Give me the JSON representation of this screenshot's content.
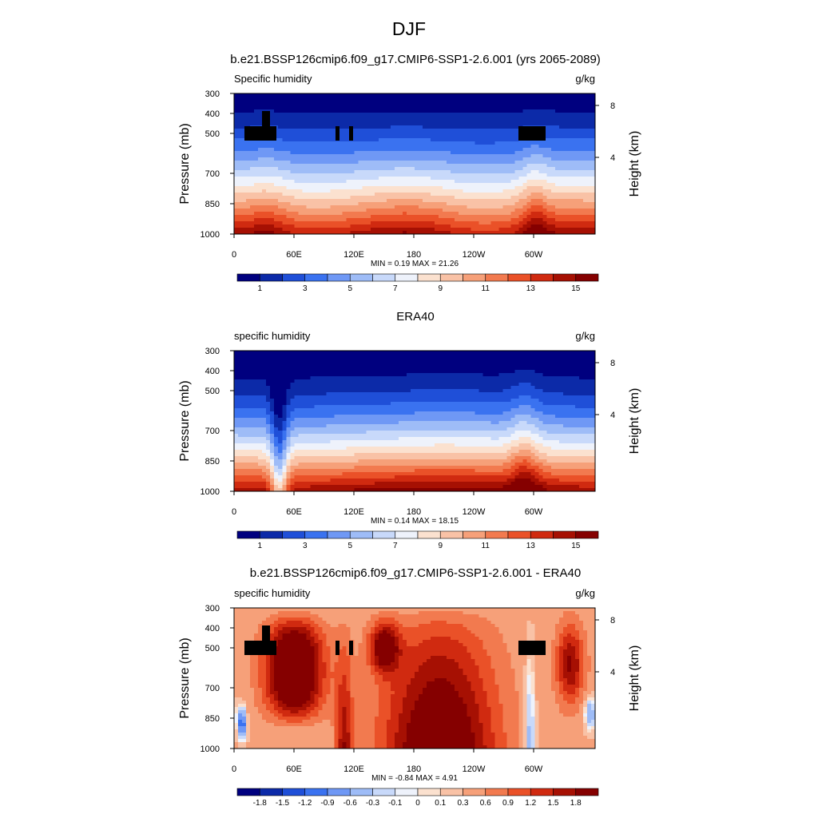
{
  "figure": {
    "title": "DJF"
  },
  "chart_data": [
    {
      "type": "heatmap",
      "title": "b.e21.BSSP126cmip6.f09_g17.CMIP6-SSP1-2.6.001 (yrs 2065-2089)",
      "left_label": "Specific humidity",
      "units": "g/kg",
      "ylabel": "Pressure (mb)",
      "ylabel_right": "Height (km)",
      "x_ticks": [
        "0",
        "60E",
        "120E",
        "180",
        "120W",
        "60W"
      ],
      "y_ticks": [
        "300",
        "400",
        "500",
        "700",
        "850",
        "1000"
      ],
      "y_ticks_right": [
        "8",
        "4"
      ],
      "min_value": "0.19",
      "max_value": "21.26",
      "stats_text": "MIN =   0.19  MAX =  21.26",
      "colorbar_labels": [
        "1",
        "3",
        "5",
        "7",
        "9",
        "11",
        "13",
        "15"
      ],
      "colorbar_colors": [
        "#00007f",
        "#0c2aa8",
        "#1f4fd8",
        "#3a72f0",
        "#6f98f5",
        "#9ebcf7",
        "#c8d9fa",
        "#eef2fb",
        "#fbe1cf",
        "#f9c2a6",
        "#f6a079",
        "#f27a4f",
        "#ea5128",
        "#d02a10",
        "#a61003",
        "#850000"
      ],
      "levels": [
        1,
        2,
        3,
        4,
        5,
        6,
        7,
        8,
        9,
        10,
        11,
        12,
        13,
        14,
        15
      ]
    },
    {
      "type": "heatmap",
      "title": "ERA40",
      "left_label": "specific humidity",
      "units": "g/kg",
      "ylabel": "Pressure (mb)",
      "ylabel_right": "Height (km)",
      "x_ticks": [
        "0",
        "60E",
        "120E",
        "180",
        "120W",
        "60W"
      ],
      "y_ticks": [
        "300",
        "400",
        "500",
        "700",
        "850",
        "1000"
      ],
      "y_ticks_right": [
        "8",
        "4"
      ],
      "min_value": "0.14",
      "max_value": "18.15",
      "stats_text": "MIN =   0.14  MAX =  18.15",
      "colorbar_labels": [
        "1",
        "3",
        "5",
        "7",
        "9",
        "11",
        "13",
        "15"
      ],
      "colorbar_colors": [
        "#00007f",
        "#0c2aa8",
        "#1f4fd8",
        "#3a72f0",
        "#6f98f5",
        "#9ebcf7",
        "#c8d9fa",
        "#eef2fb",
        "#fbe1cf",
        "#f9c2a6",
        "#f6a079",
        "#f27a4f",
        "#ea5128",
        "#d02a10",
        "#a61003",
        "#850000"
      ],
      "levels": [
        1,
        2,
        3,
        4,
        5,
        6,
        7,
        8,
        9,
        10,
        11,
        12,
        13,
        14,
        15
      ]
    },
    {
      "type": "heatmap",
      "title": "b.e21.BSSP126cmip6.f09_g17.CMIP6-SSP1-2.6.001 - ERA40",
      "left_label": "specific humidity",
      "units": "g/kg",
      "ylabel": "Pressure (mb)",
      "ylabel_right": "Height (km)",
      "x_ticks": [
        "0",
        "60E",
        "120E",
        "180",
        "120W",
        "60W"
      ],
      "y_ticks": [
        "300",
        "400",
        "500",
        "700",
        "850",
        "1000"
      ],
      "y_ticks_right": [
        "8",
        "4"
      ],
      "min_value": "-0.84",
      "max_value": "4.91",
      "stats_text": "MIN =  -0.84  MAX =   4.91",
      "colorbar_labels": [
        "-1.8",
        "-1.5",
        "-1.2",
        "-0.9",
        "-0.6",
        "-0.3",
        "-0.1",
        "0",
        "0.1",
        "0.3",
        "0.6",
        "0.9",
        "1.2",
        "1.5",
        "1.8"
      ],
      "colorbar_colors": [
        "#00007f",
        "#0c2aa8",
        "#1f4fd8",
        "#3a72f0",
        "#6f98f5",
        "#9ebcf7",
        "#c8d9fa",
        "#eef2fb",
        "#fbe1cf",
        "#f9c2a6",
        "#f6a079",
        "#f27a4f",
        "#ea5128",
        "#d02a10",
        "#a61003",
        "#850000"
      ],
      "levels": [
        -1.8,
        -1.5,
        -1.2,
        -0.9,
        -0.6,
        -0.3,
        -0.1,
        0,
        0.1,
        0.3,
        0.6,
        0.9,
        1.2,
        1.5,
        1.8
      ]
    }
  ]
}
